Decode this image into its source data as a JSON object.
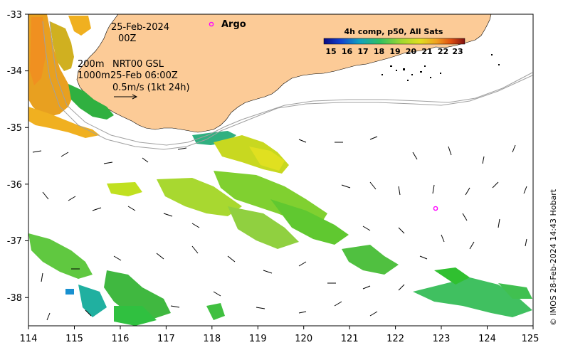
{
  "map": {
    "lon_range": [
      114,
      125
    ],
    "lat_range": [
      -38.5,
      -33
    ],
    "lon_ticks": [
      "114",
      "115",
      "116",
      "117",
      "118",
      "119",
      "120",
      "121",
      "122",
      "123",
      "124",
      "125"
    ],
    "lat_ticks": [
      "-33",
      "-34",
      "-35",
      "-36",
      "-37",
      "-38"
    ],
    "land_color": "#fccb97",
    "isobath_color": "#a0a0a0"
  },
  "annotations": {
    "date": "25-Feb-2024",
    "time": "00Z",
    "depth_200": "200m",
    "depth_1000": "1000m",
    "model": "NRT00 GSL",
    "model_time": "25-Feb 06:00Z",
    "scale_arrow": "0.5m/s (1kt 24h)"
  },
  "legend": {
    "argo_label": "Argo",
    "argo_color": "#ff00ff"
  },
  "colorbar": {
    "title": "4h comp, p50, All Sats",
    "ticks": [
      "15",
      "16",
      "17",
      "18",
      "19",
      "20",
      "21",
      "22",
      "23"
    ]
  },
  "argo_float": {
    "lon": 122.85,
    "lat": -36.42
  },
  "credit": "© IMOS 28-Feb-2024 14:43 Hobart"
}
